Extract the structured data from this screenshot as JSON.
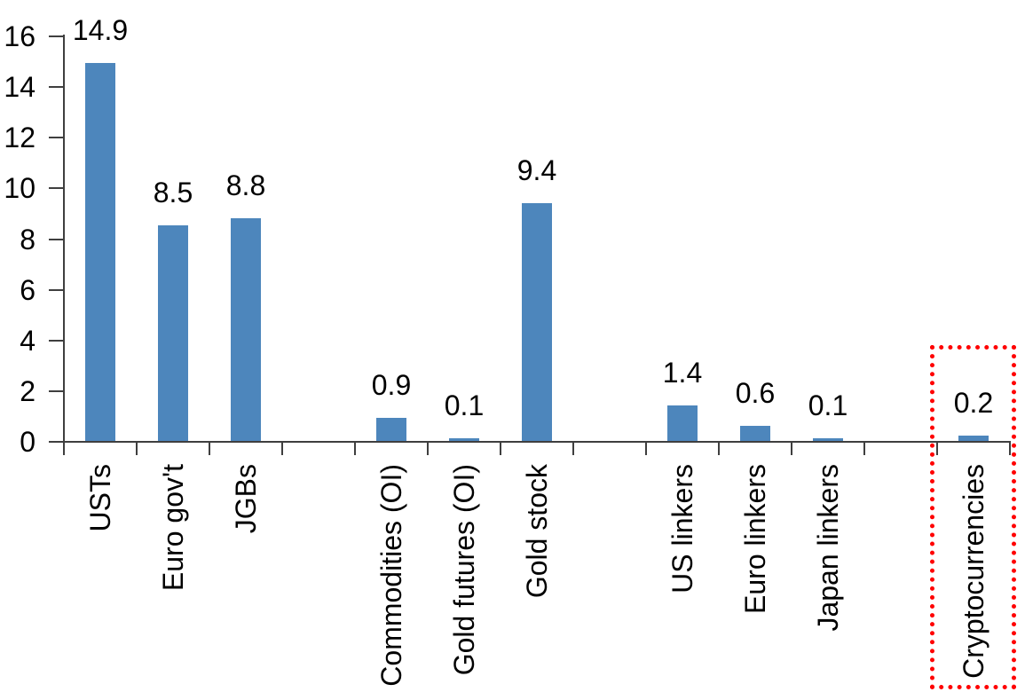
{
  "chart_data": {
    "type": "bar",
    "title": "",
    "xlabel": "",
    "ylabel": "",
    "categories": [
      "USTs",
      "Euro gov't",
      "JGBs",
      "Commodities (OI)",
      "Gold futures (OI)",
      "Gold stock",
      "US linkers",
      "Euro linkers",
      "Japan linkers",
      "Cryptocurrencies"
    ],
    "values": [
      14.9,
      8.5,
      8.8,
      0.9,
      0.1,
      9.4,
      1.4,
      0.6,
      0.1,
      0.2
    ],
    "data_labels": [
      "14.9",
      "8.5",
      "8.8",
      "0.9",
      "0.1",
      "9.4",
      "1.4",
      "0.6",
      "0.1",
      "0.2"
    ],
    "group_slots": [
      0,
      1,
      2,
      4,
      5,
      6,
      8,
      9,
      10,
      12
    ],
    "total_slots": 13,
    "ylim": [
      0,
      16
    ],
    "yticks": [
      0,
      2,
      4,
      6,
      8,
      10,
      12,
      14,
      16
    ],
    "grid": false,
    "legend": false,
    "bar_color": "#4d86bc",
    "axis_color": "#3f3f3f",
    "text_color": "#000000",
    "highlight": {
      "category": "Cryptocurrencies",
      "shape": "dotted-rectangle",
      "color": "#ff0000"
    }
  }
}
